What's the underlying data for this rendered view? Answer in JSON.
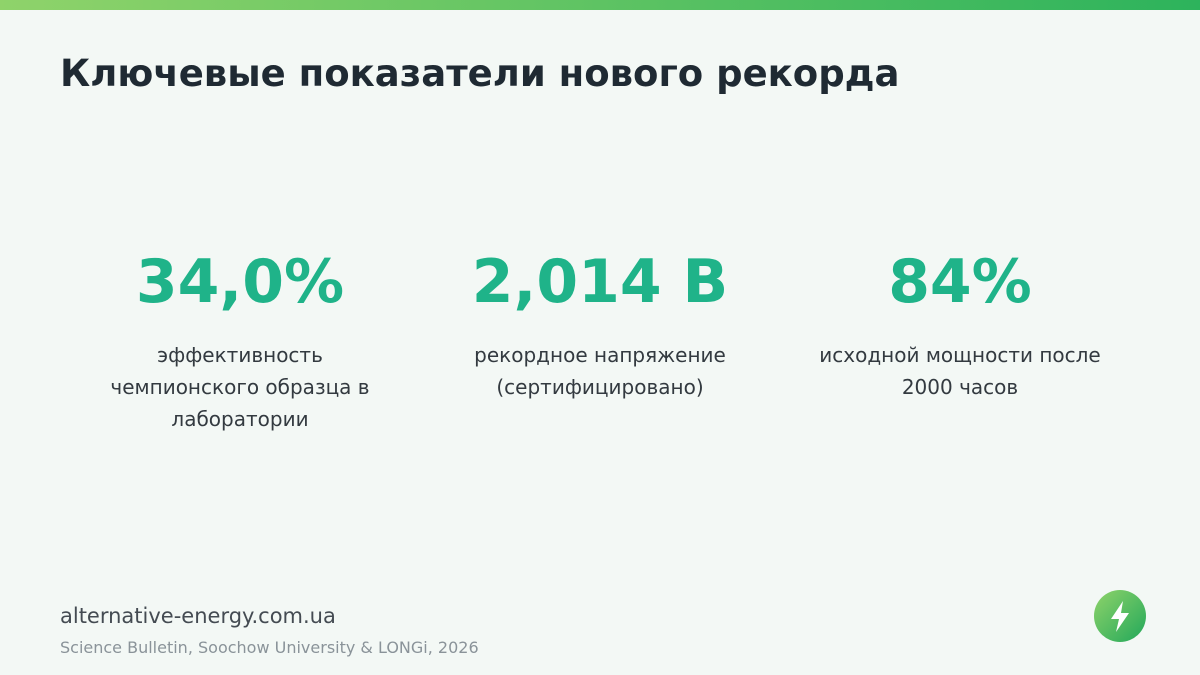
{
  "header": {
    "title": "Ключевые показатели нового рекорда"
  },
  "stats": [
    {
      "value": "34,0%",
      "label": "эффективность чемпионского образца в лаборатории"
    },
    {
      "value": "2,014 В",
      "label": "рекордное напряжение (сертифицировано)"
    },
    {
      "value": "84%",
      "label": "исходной мощности после 2000 часов"
    }
  ],
  "footer": {
    "site": "alternative-energy.com.ua",
    "source": "Science Bulletin, Soochow University & LONGi, 2026"
  }
}
